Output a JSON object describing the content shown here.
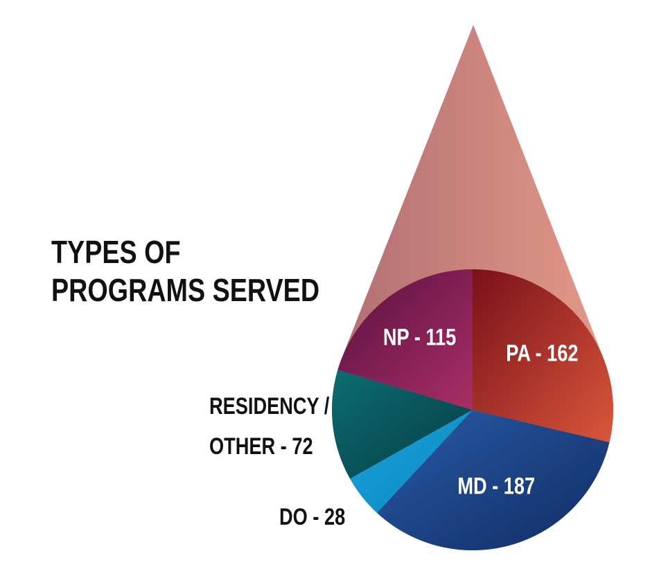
{
  "title_lines": [
    "TYPES OF",
    "PROGRAMS SERVED"
  ],
  "chart_data": {
    "type": "pie",
    "title": "TYPES OF PROGRAMS SERVED",
    "slices": [
      {
        "label": "PA - 162",
        "name": "PA",
        "value": 162,
        "color_start": "#7a1019",
        "color_end": "#d9573c",
        "label_position": "inside"
      },
      {
        "label": "MD - 187",
        "name": "MD",
        "value": 187,
        "color_start": "#2a5ba8",
        "color_end": "#0f2c63",
        "label_position": "inside"
      },
      {
        "label": "DO - 28",
        "name": "DO",
        "value": 28,
        "color_start": "#1ba3d8",
        "color_end": "#0a86c2",
        "label_position": "outside"
      },
      {
        "label": "RESIDENCY / OTHER - 72",
        "label_lines": [
          "RESIDENCY /",
          "OTHER - 72"
        ],
        "name": "RESIDENCY / OTHER",
        "value": 72,
        "color_start": "#0c6d70",
        "color_end": "#063c45",
        "label_position": "outside"
      },
      {
        "label": "NP - 115",
        "name": "NP",
        "value": 115,
        "color_start": "#591040",
        "color_end": "#a92f66",
        "label_position": "inside"
      }
    ],
    "drop_colors": [
      "#b06e73",
      "#e59a88"
    ]
  }
}
